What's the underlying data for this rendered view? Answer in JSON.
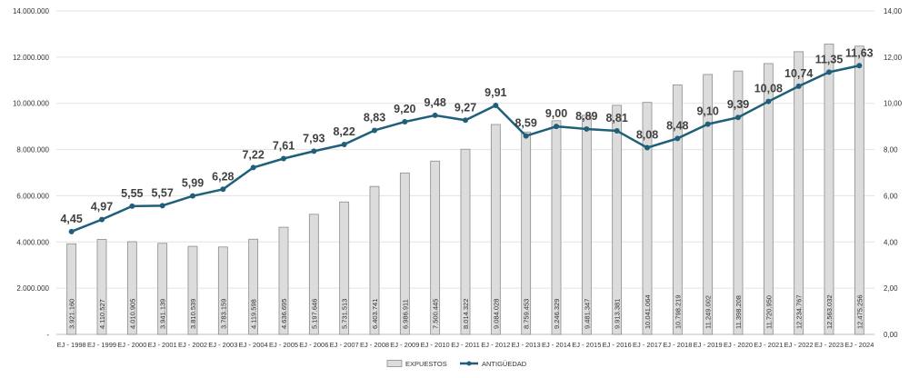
{
  "chart_data": {
    "type": "bar",
    "title": "",
    "xlabel": "",
    "ylabel": "",
    "categories": [
      "EJ - 1998",
      "EJ - 1999",
      "EJ - 2000",
      "EJ - 2001",
      "EJ - 2002",
      "EJ - 2003",
      "EJ - 2004",
      "EJ - 2005",
      "EJ - 2006",
      "EJ - 2007",
      "EJ - 2008",
      "EJ - 2009",
      "EJ - 2010",
      "EJ - 2011",
      "EJ - 2012",
      "EJ - 2013",
      "EJ - 2014",
      "EJ - 2015",
      "EJ - 2016",
      "EJ - 2017",
      "EJ - 2018",
      "EJ - 2019",
      "EJ - 2020",
      "EJ - 2021",
      "EJ - 2022",
      "EJ - 2023",
      "EJ - 2024"
    ],
    "series": [
      {
        "name": "EXPUESTOS",
        "type": "bar",
        "axis": "left",
        "color": "#d9d9d9",
        "values": [
          3921160,
          4110527,
          4010905,
          3941139,
          3810539,
          3783159,
          4119598,
          4636695,
          5197646,
          5731513,
          6403741,
          6986911,
          7500445,
          8014322,
          9084028,
          8759453,
          9246329,
          9481347,
          9913381,
          10041064,
          10798219,
          11249002,
          11398208,
          11720950,
          12234767,
          12563032,
          12475256
        ],
        "labels": [
          "3.921.160",
          "4.110.527",
          "4.010.905",
          "3.941.139",
          "3.810.539",
          "3.783.159",
          "4.119.598",
          "4.636.695",
          "5.197.646",
          "5.731.513",
          "6.403.741",
          "6.986.911",
          "7.500.445",
          "8.014.322",
          "9.084.028",
          "8.759.453",
          "9.246.329",
          "9.481.347",
          "9.913.381",
          "10.041.064",
          "10.798.219",
          "11.249.002",
          "11.398.208",
          "11.720.950",
          "12.234.767",
          "12.563.032",
          "12.475.256"
        ]
      },
      {
        "name": "ANTIGÜEDAD",
        "type": "line",
        "axis": "right",
        "color": "#1f5f7a",
        "values": [
          4.45,
          4.97,
          5.55,
          5.57,
          5.99,
          6.28,
          7.22,
          7.61,
          7.93,
          8.22,
          8.83,
          9.2,
          9.48,
          9.27,
          9.91,
          8.59,
          9.0,
          8.89,
          8.81,
          8.08,
          8.48,
          9.1,
          9.39,
          10.08,
          10.74,
          11.35,
          11.63
        ],
        "labels": [
          "4,45",
          "4,97",
          "5,55",
          "5,57",
          "5,99",
          "6,28",
          "7,22",
          "7,61",
          "7,93",
          "8,22",
          "8,83",
          "9,20",
          "9,48",
          "9,27",
          "9,91",
          "8,59",
          "9,00",
          "8,89",
          "8,81",
          "8,08",
          "8,48",
          "9,10",
          "9,39",
          "10,08",
          "10,74",
          "11,35",
          "11,63"
        ]
      }
    ],
    "y_left": {
      "lim": [
        0,
        14000000
      ],
      "ticks": [
        0,
        2000000,
        4000000,
        6000000,
        8000000,
        10000000,
        12000000,
        14000000
      ],
      "tick_labels": [
        "-",
        "2.000.000",
        "4.000.000",
        "6.000.000",
        "8.000.000",
        "10.000.000",
        "12.000.000",
        "14.000.000"
      ]
    },
    "y_right": {
      "lim": [
        0,
        14
      ],
      "ticks": [
        0,
        2,
        4,
        6,
        8,
        10,
        12,
        14
      ],
      "tick_labels": [
        "0,00",
        "2,00",
        "4,00",
        "6,00",
        "8,00",
        "10,00",
        "12,00",
        "14,00"
      ]
    },
    "grid": true,
    "legend": {
      "position": "bottom-center",
      "items": [
        {
          "label": "EXPUESTOS",
          "marker": "bar",
          "color": "#d9d9d9"
        },
        {
          "label": "ANTIGÜEDAD",
          "marker": "line",
          "color": "#1f5f7a"
        }
      ]
    }
  }
}
